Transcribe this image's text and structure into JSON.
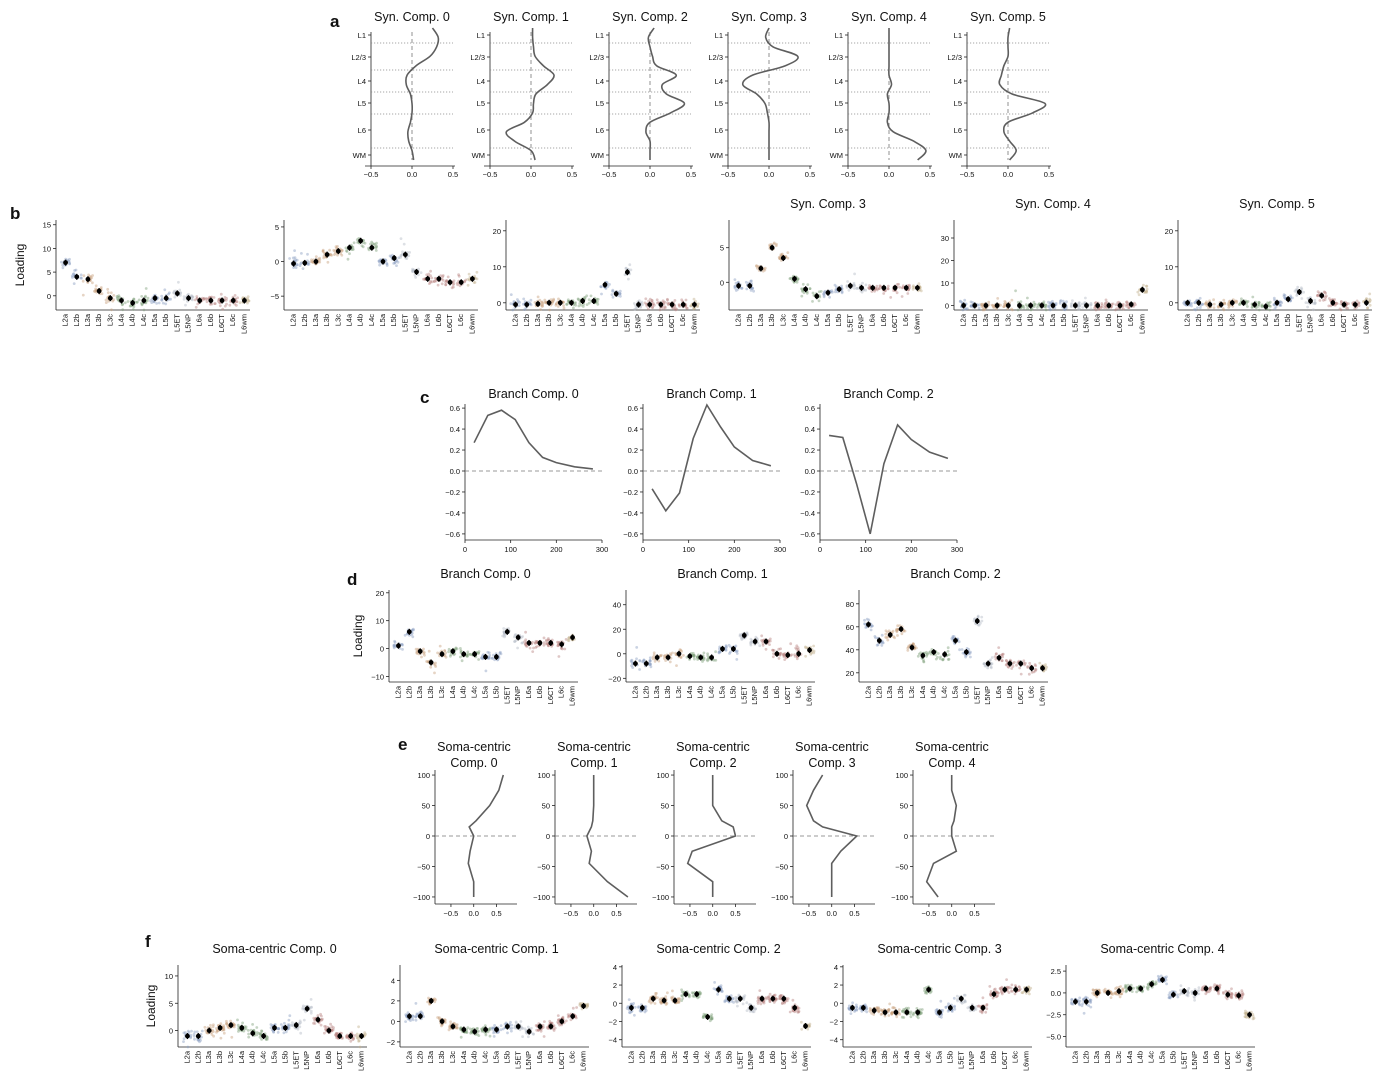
{
  "panels": {
    "a": "a",
    "b": "b",
    "c": "c",
    "d": "d",
    "e": "e",
    "f": "f"
  },
  "colors": {
    "line": "#5e5e5e",
    "mean": "#000000",
    "blue": "#8a9ec2",
    "orange": "#c8a07c",
    "green": "#7f9f7b",
    "red": "#b78380",
    "grey": "#b4bac6",
    "khaki": "#c2b08c"
  },
  "chart_data": [
    {
      "id": "a",
      "type": "line",
      "titles": [
        "Syn. Comp. 0",
        "Syn. Comp. 1",
        "Syn. Comp. 2",
        "Syn. Comp. 3",
        "Syn. Comp. 4",
        "Syn. Comp. 5"
      ],
      "depth_labels": [
        "L1",
        "L2/3",
        "L4",
        "L5",
        "L6",
        "WM"
      ],
      "xticks": [
        "−0.5",
        "0.0",
        "0.5"
      ],
      "xlim": [
        -0.5,
        0.5
      ],
      "series": [
        [
          0.25,
          0.32,
          0.3,
          0.22,
          0.05,
          -0.06,
          -0.07,
          -0.02,
          0.0,
          0.0,
          -0.02,
          -0.05,
          -0.04,
          0.0,
          0.02
        ],
        [
          0.02,
          0.02,
          0.03,
          0.05,
          0.15,
          0.28,
          0.2,
          0.06,
          0.03,
          0.02,
          -0.08,
          -0.3,
          -0.2,
          0.0,
          0.05
        ],
        [
          0.05,
          -0.02,
          0.0,
          0.03,
          0.08,
          0.32,
          0.15,
          0.2,
          0.42,
          0.25,
          0.0,
          -0.05,
          0.0,
          0.0,
          0.0
        ],
        [
          0.0,
          -0.04,
          0.05,
          0.35,
          0.2,
          -0.2,
          -0.32,
          -0.15,
          -0.05,
          -0.02,
          0.0,
          0.0,
          0.0,
          0.0,
          0.0
        ],
        [
          0.0,
          0.0,
          0.0,
          0.0,
          0.0,
          0.0,
          0.03,
          -0.02,
          0.0,
          0.0,
          -0.02,
          0.05,
          0.3,
          0.45,
          0.35
        ],
        [
          0.02,
          0.0,
          0.0,
          0.0,
          -0.05,
          -0.08,
          -0.1,
          0.05,
          0.45,
          0.3,
          0.0,
          -0.05,
          0.02,
          0.1,
          0.02
        ]
      ]
    },
    {
      "id": "b",
      "type": "scatter",
      "ylabel": "Loading",
      "titles": [
        "",
        "",
        "",
        "Syn. Comp. 3",
        "Syn. Comp. 4",
        "Syn. Comp. 5"
      ],
      "categories": [
        "L2a",
        "L2b",
        "L3a",
        "L3b",
        "L3c",
        "L4a",
        "L4b",
        "L4c",
        "L5a",
        "L5b",
        "L5ET",
        "L5NP",
        "L6a",
        "L6b",
        "L6CT",
        "L6c",
        "L6wm"
      ],
      "ylim": [
        [
          -3,
          16
        ],
        [
          -7,
          6
        ],
        [
          -2,
          23
        ],
        [
          -4,
          9
        ],
        [
          -2,
          38
        ],
        [
          -2,
          23
        ]
      ],
      "yticks": [
        [
          "0",
          "5",
          "10",
          "15"
        ],
        [
          "−5",
          "0",
          "5"
        ],
        [
          "0",
          "10",
          "20"
        ],
        [
          "0",
          "5"
        ],
        [
          "0",
          "10",
          "20",
          "30"
        ],
        [
          "0",
          "10",
          "20"
        ]
      ],
      "values": [
        [
          7,
          4,
          3.5,
          1,
          -0.5,
          -1,
          -1.5,
          -1,
          -0.5,
          -0.5,
          0.5,
          -0.5,
          -1,
          -1,
          -1,
          -1,
          -1
        ],
        [
          -0.3,
          -0.2,
          0,
          1,
          1.5,
          2,
          3,
          2,
          0,
          0.5,
          1,
          -1.5,
          -2.5,
          -2.5,
          -3,
          -3,
          -2.5
        ],
        [
          -0.5,
          -0.5,
          -0.3,
          0,
          0,
          0,
          0.5,
          0.5,
          5,
          2.5,
          8.5,
          -0.5,
          -0.5,
          -0.5,
          -0.5,
          -0.5,
          -0.5
        ],
        [
          -0.5,
          -0.5,
          2,
          5,
          3.5,
          0.5,
          -1,
          -2,
          -1.5,
          -1,
          -0.5,
          -0.8,
          -0.8,
          -0.8,
          -0.8,
          -0.8,
          -0.8
        ],
        [
          0,
          0,
          0,
          0,
          0,
          0,
          0,
          0,
          0,
          0,
          0,
          0,
          0,
          0,
          0,
          0.5,
          7
        ],
        [
          0,
          0,
          -0.5,
          -0.5,
          0,
          0,
          -0.5,
          -1,
          0,
          1,
          3,
          0.5,
          2,
          0,
          -0.5,
          -0.5,
          0
        ]
      ]
    },
    {
      "id": "c",
      "type": "line",
      "titles": [
        "Branch Comp. 0",
        "Branch Comp. 1",
        "Branch Comp. 2"
      ],
      "xticks": [
        "0",
        "100",
        "200",
        "300"
      ],
      "yticks": [
        "0.6",
        "0.4",
        "0.2",
        "0.0",
        "−0.2",
        "−0.4",
        "−0.6"
      ],
      "xlim": [
        0,
        300
      ],
      "ylim": [
        -0.62,
        0.62
      ],
      "x": [
        20,
        50,
        80,
        110,
        140,
        170,
        200,
        240,
        280
      ],
      "series": [
        [
          0.27,
          0.53,
          0.58,
          0.49,
          0.27,
          0.13,
          0.08,
          0.04,
          0.02
        ],
        [
          -0.17,
          -0.38,
          -0.21,
          0.31,
          0.63,
          0.42,
          0.23,
          0.1,
          0.05
        ],
        [
          0.34,
          0.32,
          -0.12,
          -0.6,
          0.07,
          0.44,
          0.3,
          0.18,
          0.12
        ]
      ]
    },
    {
      "id": "d",
      "type": "scatter",
      "ylabel": "Loading",
      "titles": [
        "Branch Comp. 0",
        "Branch Comp. 1",
        "Branch Comp. 2"
      ],
      "categories": [
        "L2a",
        "L2b",
        "L3a",
        "L3b",
        "L3c",
        "L4a",
        "L4b",
        "L4c",
        "L5a",
        "L5b",
        "L5ET",
        "L5NP",
        "L6a",
        "L6b",
        "L6CT",
        "L6c",
        "L6wm"
      ],
      "ylim": [
        [
          -12,
          21
        ],
        [
          -23,
          52
        ],
        [
          12,
          92
        ]
      ],
      "yticks": [
        [
          "−10",
          "0",
          "10",
          "20"
        ],
        [
          "−20",
          "0",
          "20",
          "40"
        ],
        [
          "20",
          "40",
          "60",
          "80"
        ]
      ],
      "values": [
        [
          1,
          6,
          -1,
          -5,
          -2,
          -1,
          -2,
          -2,
          -3,
          -3,
          6,
          4,
          2,
          2,
          2,
          1.5,
          4
        ],
        [
          -8,
          -8,
          -3,
          -3,
          0,
          -2,
          -3,
          -3,
          4,
          4,
          15,
          10,
          10,
          0,
          -1,
          0,
          3
        ],
        [
          62,
          48,
          53,
          58,
          42,
          35,
          38,
          36,
          48,
          38,
          65,
          28,
          33,
          28,
          28,
          24,
          24
        ]
      ]
    },
    {
      "id": "e",
      "type": "line",
      "titles": [
        [
          "Soma-centric",
          "Comp. 0"
        ],
        [
          "Soma-centric",
          "Comp. 1"
        ],
        [
          "Soma-centric",
          "Comp. 2"
        ],
        [
          "Soma-centric",
          "Comp. 3"
        ],
        [
          "Soma-centric",
          "Comp. 4"
        ]
      ],
      "xticks": [
        "−0.5",
        "0.0",
        "0.5"
      ],
      "yticks": [
        "100",
        "50",
        "0",
        "−50",
        "−100"
      ],
      "xlim": [
        -0.85,
        0.95
      ],
      "ylim": [
        -105,
        105
      ],
      "y": [
        100,
        75,
        50,
        25,
        15,
        0,
        -25,
        -45,
        -75,
        -100
      ],
      "series": [
        [
          0.65,
          0.55,
          0.35,
          0.05,
          -0.1,
          0.0,
          -0.08,
          -0.12,
          0.0,
          0.0
        ],
        [
          0.0,
          0.0,
          0.0,
          -0.02,
          -0.05,
          -0.15,
          -0.05,
          -0.1,
          0.3,
          0.75
        ],
        [
          0.0,
          0.0,
          0.0,
          0.2,
          0.45,
          0.5,
          -0.45,
          -0.55,
          0.0,
          0.0
        ],
        [
          -0.2,
          -0.4,
          -0.55,
          -0.4,
          -0.2,
          0.55,
          0.2,
          0.0,
          0.0,
          0.0
        ],
        [
          0.0,
          0.0,
          0.1,
          0.05,
          0.0,
          0.0,
          0.1,
          -0.4,
          -0.55,
          -0.3
        ]
      ]
    },
    {
      "id": "f",
      "type": "scatter",
      "ylabel": "Loading",
      "titles": [
        "Soma-centric Comp. 0",
        "Soma-centric Comp. 1",
        "Soma-centric Comp. 2",
        "Soma-centric Comp. 3",
        "Soma-centric Comp. 4"
      ],
      "categories": [
        "L2a",
        "L2b",
        "L3a",
        "L3b",
        "L3c",
        "L4a",
        "L4b",
        "L4c",
        "L5a",
        "L5b",
        "L5ET",
        "L5NP",
        "L6a",
        "L6b",
        "L6CT",
        "L6c",
        "L6wm"
      ],
      "ylim": [
        [
          -3,
          12
        ],
        [
          -2.5,
          5.5
        ],
        [
          -4.8,
          4.2
        ],
        [
          -4.8,
          4.2
        ],
        [
          -6.2,
          3.2
        ]
      ],
      "yticks": [
        [
          "0",
          "5",
          "10"
        ],
        [
          "−2",
          "0",
          "2",
          "4"
        ],
        [
          "−4",
          "−2",
          "0",
          "2",
          "4"
        ],
        [
          "−4",
          "−2",
          "0",
          "2",
          "4"
        ],
        [
          "−5.0",
          "−2.5",
          "0.0",
          "2.5"
        ]
      ],
      "values": [
        [
          -1,
          -1,
          0,
          0.5,
          1,
          0.5,
          -0.5,
          -1,
          0.5,
          0.5,
          1,
          4,
          2,
          0,
          -1,
          -1,
          -1
        ],
        [
          0.5,
          0.5,
          2,
          0,
          -0.5,
          -0.8,
          -1,
          -0.8,
          -0.8,
          -0.5,
          -0.5,
          -1,
          -0.5,
          -0.5,
          0,
          0.5,
          1.5
        ],
        [
          -0.5,
          -0.5,
          0.5,
          0.3,
          0.3,
          1,
          1,
          -1.5,
          1.5,
          0.5,
          0.5,
          -0.5,
          0.5,
          0.5,
          0.5,
          -0.5,
          -2.5
        ],
        [
          -0.5,
          -0.5,
          -0.8,
          -1,
          -1,
          -1,
          -1,
          1.5,
          -1,
          -0.5,
          0.5,
          -0.5,
          -0.5,
          1,
          1.5,
          1.5,
          1.5
        ],
        [
          -1,
          -1,
          0,
          0,
          0.2,
          0.5,
          0.5,
          1,
          1.5,
          -0.2,
          0.2,
          0,
          0.5,
          0.5,
          -0.2,
          -0.3,
          -2.5
        ]
      ]
    }
  ]
}
